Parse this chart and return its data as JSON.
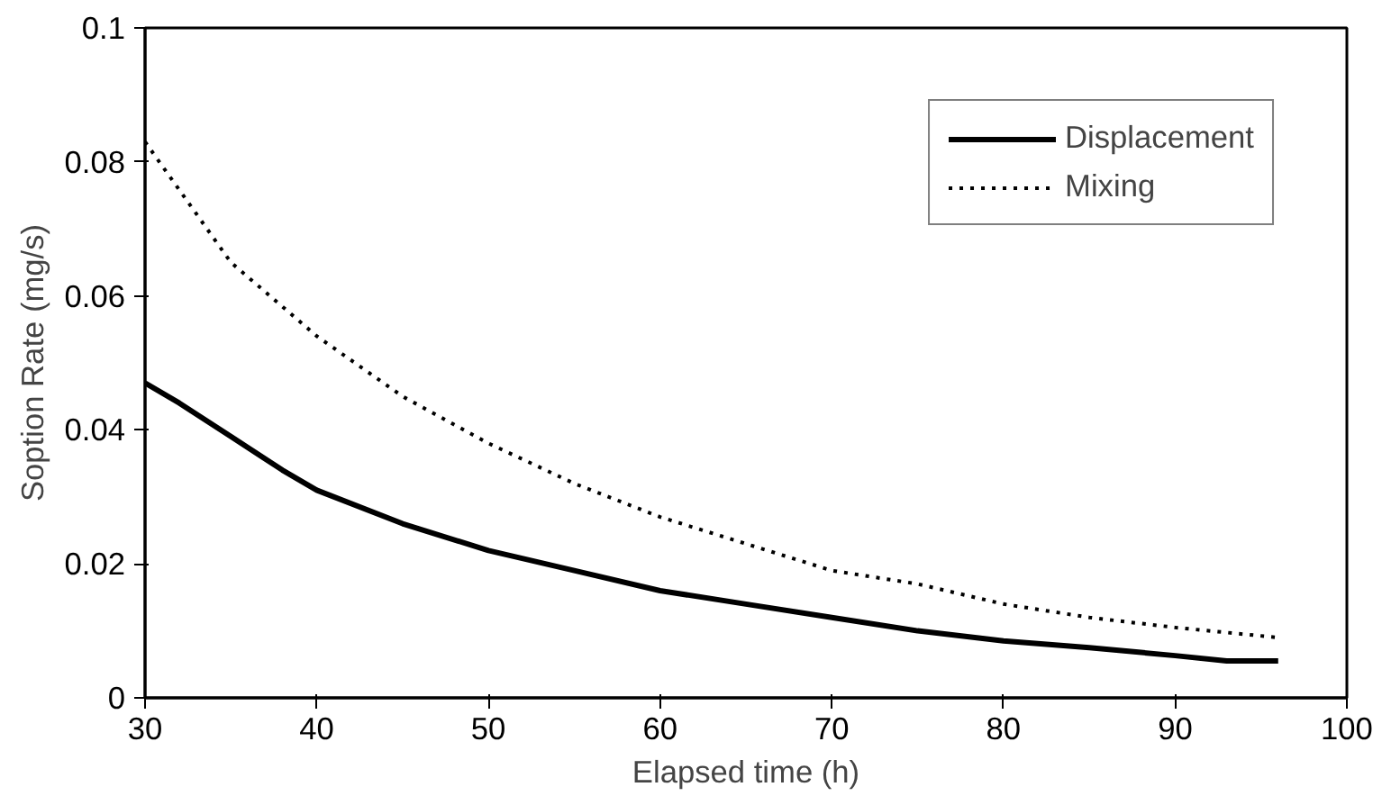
{
  "chart_data": {
    "type": "line",
    "xlabel": "Elapsed time (h)",
    "ylabel": "Soption Rate (mg/s)",
    "xlim": [
      30,
      100
    ],
    "xticks": [
      30,
      40,
      50,
      60,
      70,
      80,
      90,
      100
    ],
    "ylim": [
      0,
      0.1
    ],
    "yticks": [
      0,
      0.02,
      0.04,
      0.06,
      0.08,
      0.1
    ],
    "grid": false,
    "legend": "top right",
    "series": [
      {
        "name": "Displacement",
        "color": "#000000",
        "line_style": "solid",
        "x": [
          30,
          32,
          35,
          38,
          40,
          45,
          50,
          55,
          60,
          65,
          70,
          75,
          80,
          85,
          90,
          93,
          96
        ],
        "values": [
          0.047,
          0.044,
          0.039,
          0.034,
          0.031,
          0.026,
          0.022,
          0.019,
          0.016,
          0.014,
          0.012,
          0.01,
          0.0085,
          0.0075,
          0.0063,
          0.0055,
          0.0055
        ]
      },
      {
        "name": "Mixing",
        "color": "#000000",
        "line_style": "dotted",
        "x": [
          30,
          35,
          40,
          45,
          50,
          55,
          60,
          65,
          70,
          75,
          80,
          85,
          90,
          96
        ],
        "values": [
          0.083,
          0.065,
          0.054,
          0.045,
          0.038,
          0.032,
          0.027,
          0.023,
          0.019,
          0.017,
          0.014,
          0.012,
          0.0105,
          0.009
        ]
      }
    ]
  }
}
